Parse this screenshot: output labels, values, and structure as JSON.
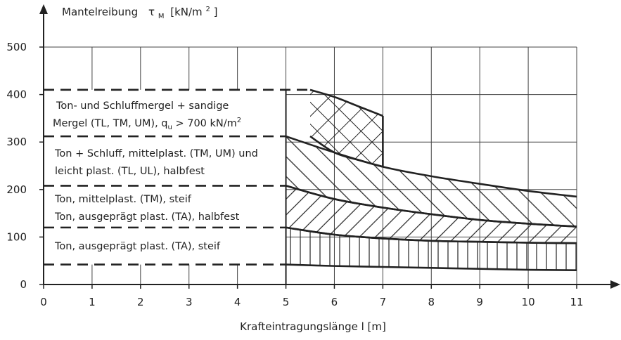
{
  "chart_data": {
    "type": "area",
    "title": "",
    "ylabel": "Mantelreibung",
    "ylabel_symbol": "τ",
    "ylabel_symbol_sub": "M",
    "ylabel_unit_pre": "[kN/m",
    "ylabel_unit_sup": "2",
    "ylabel_unit_post": "]",
    "xlabel": "Krafteintragungslänge  l [m]",
    "xlim": [
      0,
      11
    ],
    "ylim": [
      0,
      500
    ],
    "x_ticks": [
      0,
      1,
      2,
      3,
      4,
      5,
      6,
      7,
      8,
      9,
      10,
      11
    ],
    "y_ticks": [
      0,
      100,
      200,
      300,
      400,
      500
    ],
    "grid": true,
    "bands": [
      {
        "label_lines": [
          "Ton, ausgeprägt plast. (TA), steif"
        ],
        "x": [
          5,
          6,
          7,
          8,
          9,
          10,
          11
        ],
        "lower": [
          42,
          39,
          37,
          35,
          33,
          31,
          30
        ],
        "upper": [
          120,
          105,
          97,
          92,
          90,
          88,
          87
        ],
        "dash_levels": [
          42,
          120
        ],
        "hatch": "vertical"
      },
      {
        "label_lines": [
          "Ton, mittelplast. (TM), steif",
          "Ton, ausgeprägt plast. (TA), halbfest"
        ],
        "x": [
          5,
          6,
          7,
          8,
          9,
          10,
          11
        ],
        "lower": [
          120,
          105,
          97,
          92,
          90,
          88,
          87
        ],
        "upper": [
          208,
          180,
          162,
          148,
          136,
          128,
          122
        ],
        "dash_levels": [
          120,
          208
        ],
        "hatch": "backslash"
      },
      {
        "label_lines": [
          "Ton + Schluff, mittelplast. (TM, UM) und",
          "leicht plast. (TL, UL), halbfest"
        ],
        "x": [
          5,
          6,
          7,
          8,
          9,
          10,
          11
        ],
        "lower": [
          208,
          180,
          162,
          148,
          136,
          128,
          122
        ],
        "upper": [
          312,
          278,
          248,
          228,
          212,
          197,
          185
        ],
        "dash_levels": [
          208,
          312
        ],
        "hatch": "slash"
      },
      {
        "label_lines": [
          "Ton- und Schluffmergel + sandige",
          "Mergel (TL, TM, UM), q",
          "u",
          " > 700 kN/m",
          "2"
        ],
        "x": [
          5.5,
          6,
          6.5,
          7
        ],
        "lower": [
          312,
          278,
          262,
          248
        ],
        "upper": [
          410,
          395,
          375,
          355
        ],
        "dash_levels": [
          312,
          410
        ],
        "hatch": "cross"
      }
    ]
  }
}
